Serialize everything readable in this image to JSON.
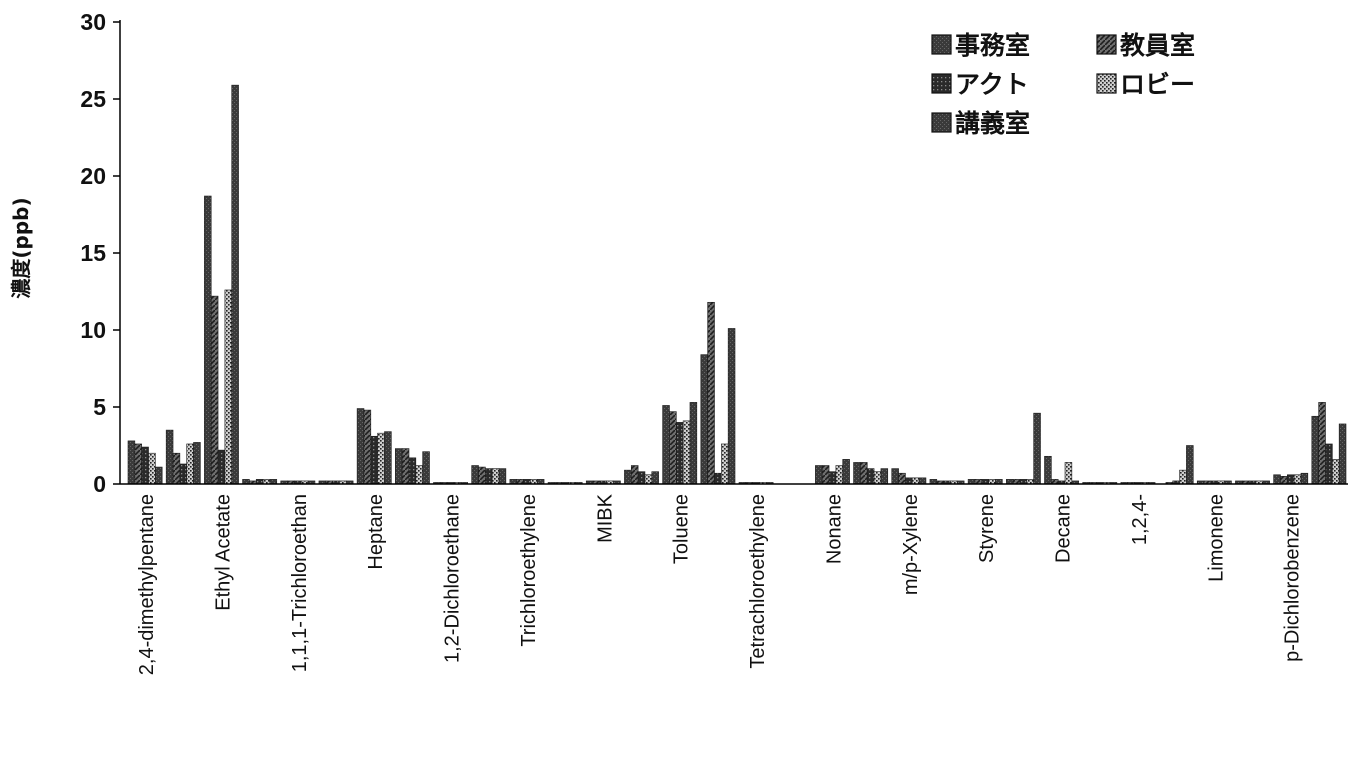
{
  "chart_data": {
    "type": "bar",
    "ylabel": "濃度(ppb)",
    "ylim": [
      0,
      30
    ],
    "yticks": [
      0,
      5,
      10,
      15,
      20,
      25,
      30
    ],
    "grid": false,
    "legend_position": "top-right",
    "categories": [
      "2,4-dimethylpentane",
      "",
      "Ethyl Acetate",
      "",
      "1,1,1-Trichloroethan",
      "",
      "Heptane",
      "",
      "1,2-Dichloroethane",
      "",
      "Trichloroethylene",
      "",
      "MIBK",
      "",
      "Toluene",
      "",
      "Tetrachloroethylene",
      "",
      "Nonane",
      "",
      "m/p-Xylene",
      "",
      "Styrene",
      "",
      "Decane",
      "",
      "1,2,4-",
      "",
      "Limonene",
      "",
      "p-Dichlorobenzene",
      ""
    ],
    "series": [
      {
        "name": "事務室",
        "values": [
          2.8,
          3.5,
          18.7,
          0.3,
          0.2,
          0.2,
          4.9,
          2.3,
          0.1,
          1.2,
          0.3,
          0.1,
          0.2,
          0.9,
          5.1,
          8.4,
          0.1,
          0.0,
          1.2,
          1.4,
          1.0,
          0.3,
          0.3,
          0.3,
          1.8,
          0.1,
          0.1,
          0.0,
          0.2,
          0.2,
          0.6,
          4.4
        ]
      },
      {
        "name": "教員室",
        "values": [
          2.6,
          2.0,
          12.2,
          0.2,
          0.2,
          0.2,
          4.8,
          2.3,
          0.1,
          1.1,
          0.3,
          0.1,
          0.2,
          1.2,
          4.7,
          11.8,
          0.1,
          0.0,
          1.2,
          1.4,
          0.7,
          0.2,
          0.3,
          0.3,
          0.3,
          0.1,
          0.1,
          0.1,
          0.2,
          0.2,
          0.5,
          5.3
        ]
      },
      {
        "name": "アクト",
        "values": [
          2.4,
          1.3,
          2.2,
          0.3,
          0.2,
          0.2,
          3.1,
          1.7,
          0.1,
          1.0,
          0.3,
          0.1,
          0.2,
          0.8,
          4.0,
          0.7,
          0.1,
          0.0,
          0.8,
          1.0,
          0.4,
          0.2,
          0.3,
          0.3,
          0.2,
          0.1,
          0.1,
          0.2,
          0.2,
          0.2,
          0.6,
          2.6
        ]
      },
      {
        "name": "ロビー",
        "values": [
          2.0,
          2.6,
          12.6,
          0.3,
          0.2,
          0.2,
          3.3,
          1.2,
          0.1,
          1.0,
          0.3,
          0.1,
          0.2,
          0.6,
          4.1,
          2.6,
          0.1,
          0.0,
          1.2,
          0.8,
          0.4,
          0.2,
          0.3,
          0.3,
          1.4,
          0.1,
          0.1,
          0.9,
          0.2,
          0.2,
          0.6,
          1.6
        ]
      },
      {
        "name": "講義室",
        "values": [
          1.1,
          2.7,
          25.9,
          0.3,
          0.2,
          0.2,
          3.4,
          2.1,
          0.1,
          1.0,
          0.3,
          0.1,
          0.2,
          0.8,
          5.3,
          10.1,
          0.1,
          0.0,
          1.6,
          1.0,
          0.4,
          0.2,
          0.3,
          4.6,
          0.2,
          0.1,
          0.1,
          2.5,
          0.2,
          0.2,
          0.7,
          3.9
        ]
      }
    ]
  },
  "legend": {
    "items": [
      {
        "label": "事務室",
        "pattern": "solid-dark"
      },
      {
        "label": "教員室",
        "pattern": "hatch"
      },
      {
        "label": "アクト",
        "pattern": "dark-dots"
      },
      {
        "label": "ロビー",
        "pattern": "light-dots"
      },
      {
        "label": "講義室",
        "pattern": "solid-dark"
      }
    ]
  }
}
